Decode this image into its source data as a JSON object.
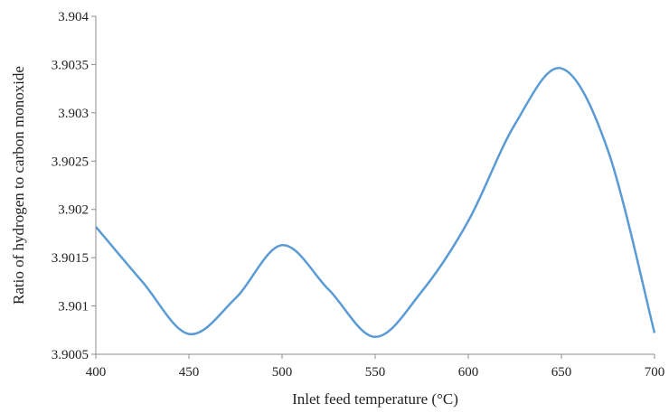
{
  "chart_data": {
    "type": "line",
    "title": "",
    "xlabel": "Inlet feed temperature (°C)",
    "ylabel": "Ratio of hydrogen to carbon monoxide",
    "xlim": [
      400,
      700
    ],
    "ylim": [
      3.9005,
      3.904
    ],
    "xticks": [
      "400",
      "450",
      "500",
      "550",
      "600",
      "650",
      "700"
    ],
    "yticks": [
      "3.9005",
      "3.901",
      "3.9015",
      "3.902",
      "3.9025",
      "3.903",
      "3.9035",
      "3.904"
    ],
    "grid": false,
    "legend": "none",
    "series": [
      {
        "color": "#5b9bd5",
        "smooth": true,
        "x": [
          400,
          425,
          450,
          475,
          500,
          525,
          550,
          575,
          600,
          625,
          650,
          675,
          700
        ],
        "y": [
          3.90182,
          3.90125,
          3.90071,
          3.90108,
          3.90163,
          3.90117,
          3.90068,
          3.90115,
          3.90188,
          3.90288,
          3.90346,
          3.90261,
          3.90072
        ]
      }
    ]
  }
}
